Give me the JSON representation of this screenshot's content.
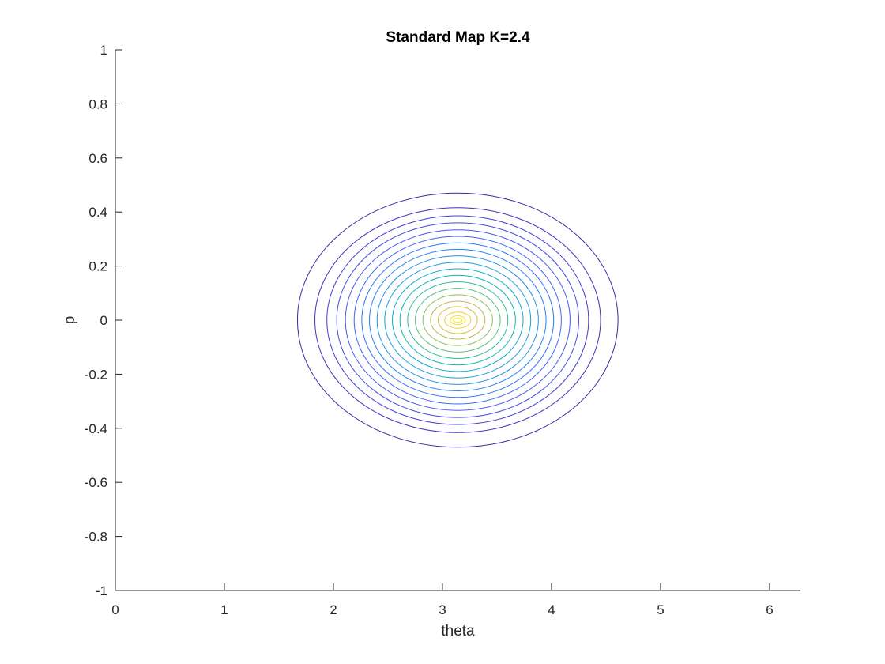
{
  "chart_data": {
    "type": "contour",
    "title": "Standard Map K=2.4",
    "xlabel": "theta",
    "ylabel": "p",
    "xlim": [
      0,
      6.2832
    ],
    "ylim": [
      -1,
      1
    ],
    "xticks": [
      "0",
      "1",
      "2",
      "3",
      "4",
      "5",
      "6"
    ],
    "yticks": [
      "-1",
      "-0.8",
      "-0.6",
      "-0.4",
      "-0.2",
      "0",
      "0.2",
      "0.4",
      "0.6",
      "0.8",
      "1"
    ],
    "grid": false,
    "box": "off",
    "colormap": "parula",
    "center": {
      "theta": 3.14,
      "p": 0.0
    },
    "contours": [
      {
        "level": 1,
        "theta_min": 1.67,
        "theta_max": 4.61,
        "p_max": 0.47,
        "color": "#3E26A8"
      },
      {
        "level": 2,
        "theta_min": 1.83,
        "theta_max": 4.45,
        "p_max": 0.416,
        "color": "#4130BF"
      },
      {
        "level": 3,
        "theta_min": 1.94,
        "theta_max": 4.34,
        "p_max": 0.386,
        "color": "#453CD3"
      },
      {
        "level": 4,
        "theta_min": 2.03,
        "theta_max": 4.25,
        "p_max": 0.36,
        "color": "#4649E5"
      },
      {
        "level": 5,
        "theta_min": 2.11,
        "theta_max": 4.17,
        "p_max": 0.334,
        "color": "#4557F2"
      },
      {
        "level": 6,
        "theta_min": 2.19,
        "theta_max": 4.09,
        "p_max": 0.31,
        "color": "#3F65FB"
      },
      {
        "level": 7,
        "theta_min": 2.26,
        "theta_max": 4.02,
        "p_max": 0.286,
        "color": "#3073FE"
      },
      {
        "level": 8,
        "theta_min": 2.33,
        "theta_max": 3.95,
        "p_max": 0.262,
        "color": "#2683F5"
      },
      {
        "level": 9,
        "theta_min": 2.4,
        "theta_max": 3.88,
        "p_max": 0.238,
        "color": "#2192E7"
      },
      {
        "level": 10,
        "theta_min": 2.47,
        "theta_max": 3.81,
        "p_max": 0.214,
        "color": "#1AA0DC"
      },
      {
        "level": 11,
        "theta_min": 2.54,
        "theta_max": 3.74,
        "p_max": 0.19,
        "color": "#0CACCC"
      },
      {
        "level": 12,
        "theta_min": 2.61,
        "theta_max": 3.67,
        "p_max": 0.166,
        "color": "#10B6B4"
      },
      {
        "level": 13,
        "theta_min": 2.68,
        "theta_max": 3.6,
        "p_max": 0.142,
        "color": "#2FBE9C"
      },
      {
        "level": 14,
        "theta_min": 2.75,
        "theta_max": 3.53,
        "p_max": 0.118,
        "color": "#5AC27F"
      },
      {
        "level": 15,
        "theta_min": 2.82,
        "theta_max": 3.46,
        "p_max": 0.094,
        "color": "#8DC060"
      },
      {
        "level": 16,
        "theta_min": 2.89,
        "theta_max": 3.39,
        "p_max": 0.07,
        "color": "#B8BB4A"
      },
      {
        "level": 17,
        "theta_min": 2.96,
        "theta_max": 3.32,
        "p_max": 0.05,
        "color": "#DBBA3C"
      },
      {
        "level": 18,
        "theta_min": 3.02,
        "theta_max": 3.26,
        "p_max": 0.03,
        "color": "#F3C82F"
      },
      {
        "level": 19,
        "theta_min": 3.07,
        "theta_max": 3.21,
        "p_max": 0.016,
        "color": "#F8DF23"
      },
      {
        "level": 20,
        "theta_min": 3.1,
        "theta_max": 3.18,
        "p_max": 0.008,
        "color": "#F9F116"
      }
    ]
  }
}
